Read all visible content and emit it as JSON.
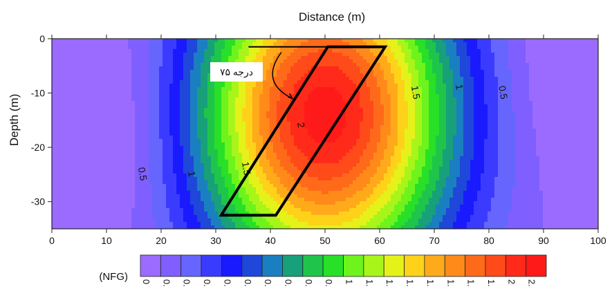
{
  "chart_data": {
    "type": "heatmap",
    "subtype": "filled-contour",
    "title": "",
    "xlabel": "Distance (m)",
    "ylabel": "Depth (m)",
    "xlim": [
      0,
      100
    ],
    "ylim": [
      -35,
      0
    ],
    "x_ticks": [
      "0",
      "10",
      "20",
      "30",
      "40",
      "50",
      "60",
      "70",
      "80",
      "90",
      "100"
    ],
    "y_ticks": [
      "0",
      "-10",
      "-20",
      "-30"
    ],
    "x_axis_position": "top-and-bottom",
    "grid": false,
    "field": {
      "description": "NFG values over distance/depth",
      "sources": [
        {
          "x": 50,
          "y": -14,
          "value": 2.15
        },
        {
          "x": 7,
          "y": -16,
          "value": 0.05
        },
        {
          "x": 97,
          "y": -6,
          "value": 0.05
        }
      ]
    },
    "contour_labels": [
      {
        "text": "0.5",
        "x": 16,
        "y": -25
      },
      {
        "text": "1",
        "x": 25,
        "y": -25
      },
      {
        "text": "1.5",
        "x": 35,
        "y": -24
      },
      {
        "text": "2",
        "x": 45,
        "y": -16
      },
      {
        "text": "1.5",
        "x": 66,
        "y": -10
      },
      {
        "text": "1",
        "x": 74,
        "y": -9
      },
      {
        "text": "0.5",
        "x": 82,
        "y": -10
      }
    ],
    "overlay": {
      "dike_outline": [
        [
          31,
          -32.5
        ],
        [
          41,
          -32.5
        ],
        [
          61,
          -1.5
        ],
        [
          50.5,
          -1.5
        ]
      ],
      "reference_line": [
        [
          36,
          -1.5
        ],
        [
          61,
          -1.5
        ]
      ],
      "annotation_text": "۷۵ درجه"
    },
    "colorbar": {
      "label": "(NFG)",
      "colors": [
        "#9b6bff",
        "#7f5fff",
        "#6666ff",
        "#3b3bff",
        "#1a1aff",
        "#1f47d9",
        "#1a7fc0",
        "#17a07a",
        "#1fc54a",
        "#28e028",
        "#6ef31c",
        "#a8f51a",
        "#e4f21a",
        "#ffd21a",
        "#ffaa1a",
        "#ff8a1a",
        "#ff6a1a",
        "#ff4a1a",
        "#ff2a1a",
        "#ff1a1a"
      ],
      "tick_labels": [
        "0",
        "0.",
        "0.",
        "0.",
        "0.",
        "0.",
        "0.",
        "0.",
        "0.",
        "0.",
        "1",
        "1.",
        "1.",
        "1.",
        "1.",
        "1.",
        "1.",
        "1.",
        "2",
        "2."
      ]
    }
  }
}
